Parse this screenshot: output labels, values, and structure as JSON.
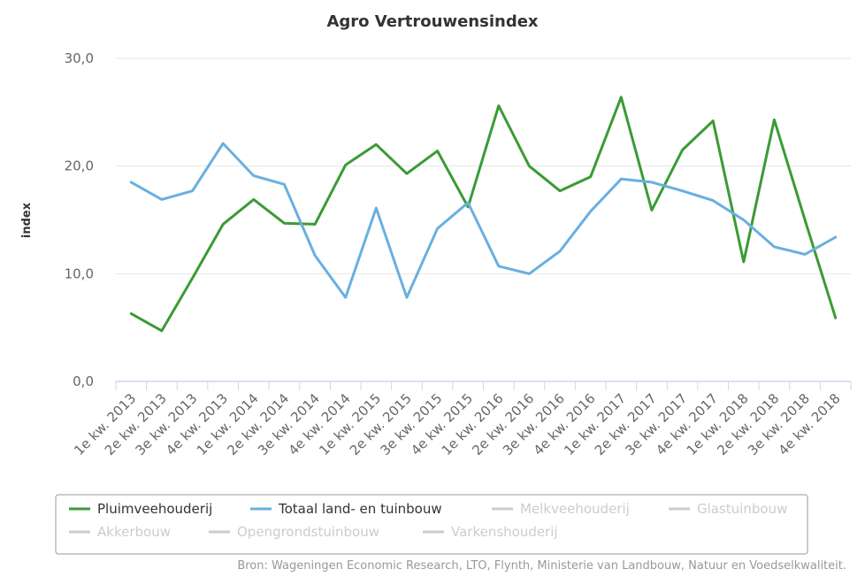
{
  "chart_data": {
    "type": "line",
    "title": "Agro Vertrouwensindex",
    "ylabel": "index",
    "xlabel": "",
    "ylim": [
      0,
      30
    ],
    "yticks": [
      "0,0",
      "10,0",
      "20,0",
      "30,0"
    ],
    "grid": true,
    "categories": [
      "1e kw. 2013",
      "2e kw. 2013",
      "3e kw. 2013",
      "4e kw. 2013",
      "1e kw. 2014",
      "2e kw. 2014",
      "3e kw. 2014",
      "4e kw. 2014",
      "1e kw. 2015",
      "2e kw. 2015",
      "3e kw. 2015",
      "4e kw. 2015",
      "1e kw. 2016",
      "2e kw. 2016",
      "3e kw. 2016",
      "4e kw. 2016",
      "1e kw. 2017",
      "2e kw. 2017",
      "3e kw. 2017",
      "4e kw. 2017",
      "1e kw. 2018",
      "2e kw. 2018",
      "3e kw. 2018",
      "4e kw. 2018"
    ],
    "series": [
      {
        "name": "Pluimveehouderij",
        "color": "#3a9b35",
        "visible": true,
        "values": [
          6.3,
          4.7,
          9.6,
          14.6,
          16.9,
          14.7,
          14.6,
          20.1,
          22.0,
          19.3,
          21.4,
          16.2,
          25.6,
          20.0,
          17.7,
          19.0,
          26.4,
          15.9,
          21.5,
          24.2,
          11.1,
          24.3,
          15.0,
          5.9
        ]
      },
      {
        "name": "Totaal land- en tuinbouw",
        "color": "#6aafe0",
        "visible": true,
        "values": [
          18.5,
          16.9,
          17.7,
          22.1,
          19.1,
          18.3,
          11.7,
          7.8,
          16.1,
          7.8,
          14.2,
          16.6,
          10.7,
          10.0,
          12.1,
          15.8,
          18.8,
          18.5,
          17.7,
          16.8,
          15.0,
          12.5,
          11.8,
          13.4
        ]
      }
    ],
    "legend": {
      "placement": "bottom",
      "items": [
        {
          "label": "Pluimveehouderij",
          "color": "#3a9b35",
          "active": true
        },
        {
          "label": "Totaal land- en tuinbouw",
          "color": "#6aafe0",
          "active": true
        },
        {
          "label": "Melkveehouderij",
          "color": "#cccccc",
          "active": false
        },
        {
          "label": "Glastuinbouw",
          "color": "#cccccc",
          "active": false
        },
        {
          "label": "Akkerbouw",
          "color": "#cccccc",
          "active": false
        },
        {
          "label": "Opengrondstuinbouw",
          "color": "#cccccc",
          "active": false
        },
        {
          "label": "Varkenshouderij",
          "color": "#cccccc",
          "active": false
        }
      ]
    },
    "source": "Bron: Wageningen Economic Research, LTO, Flynth, Ministerie van Landbouw, Natuur en Voedselkwaliteit."
  }
}
